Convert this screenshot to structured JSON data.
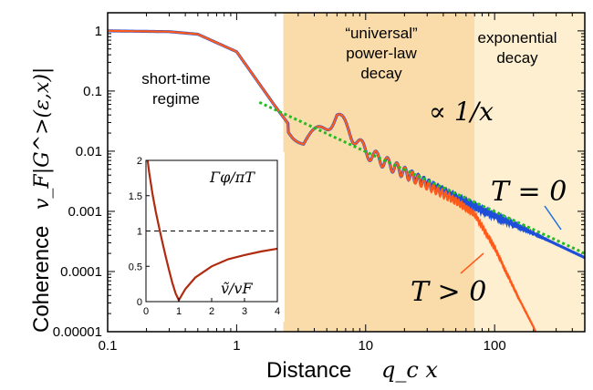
{
  "chart_data": {
    "type": "line",
    "xlabel": "Distance",
    "xlabel_math": "q_c x",
    "ylabel": "Coherence",
    "ylabel_math": "v_F|G^>(ε,x)|",
    "xscale": "log",
    "yscale": "log",
    "xlim": [
      0.1,
      500
    ],
    "ylim": [
      1e-05,
      2
    ],
    "x_ticks": [
      "0.1",
      "1",
      "10",
      "100"
    ],
    "y_ticks": [
      "1",
      "0.1",
      "0.01",
      "0.001",
      "0.0001",
      "0.00001"
    ],
    "regions": [
      {
        "lines": [
          "short-time",
          "regime"
        ],
        "x_range": [
          0.1,
          2.3
        ],
        "color": "#ffffff"
      },
      {
        "lines": [
          "“universal”",
          "power-law",
          "decay"
        ],
        "x_range": [
          2.3,
          70
        ],
        "color": "#f9dcaa"
      },
      {
        "lines": [
          "exponential",
          "decay"
        ],
        "x_range": [
          70,
          500
        ],
        "color": "#fdefd0"
      }
    ],
    "series": [
      {
        "name": "T = 0",
        "color": "#1f4fd8",
        "x": [
          0.1,
          0.3,
          0.5,
          1,
          2,
          3.3,
          6,
          10,
          20,
          50,
          100,
          200,
          500
        ],
        "y": [
          1,
          0.97,
          0.88,
          0.45,
          0.055,
          0.013,
          0.04,
          0.01,
          0.0045,
          0.0017,
          0.00085,
          0.00043,
          0.00017
        ]
      },
      {
        "name": "T > 0",
        "color": "#ff5a1a",
        "x": [
          0.1,
          0.3,
          0.5,
          1,
          2,
          3.3,
          6,
          10,
          20,
          50,
          70,
          100,
          150,
          200,
          250
        ],
        "y": [
          1,
          0.97,
          0.88,
          0.45,
          0.055,
          0.013,
          0.04,
          0.01,
          0.0045,
          0.0015,
          0.0009,
          0.00025,
          4e-05,
          1.2e-05,
          4e-06
        ]
      }
    ],
    "fit_line": {
      "label": "∝ 1/x",
      "color": "#22bb22",
      "x": [
        1.5,
        500
      ],
      "y": [
        0.065,
        0.0002
      ]
    },
    "annotations": [
      {
        "text": "T = 0"
      },
      {
        "text": "T > 0"
      }
    ],
    "inset": {
      "type": "line",
      "xlim": [
        0,
        4
      ],
      "ylim": [
        0,
        2
      ],
      "x_ticks": [
        "0",
        "1",
        "2",
        "3",
        "4"
      ],
      "y_ticks": [
        "0",
        "0.5",
        "1",
        "1.5",
        "2"
      ],
      "label_top": "Γφ/πT",
      "label_bottom": "ṽ/vF",
      "reference_line": {
        "y": 1,
        "style": "dashed"
      },
      "series": [
        {
          "color": "#b02a10",
          "x": [
            0.05,
            0.1,
            0.2,
            0.3,
            0.4,
            0.5,
            0.6,
            0.7,
            0.8,
            0.9,
            1.0,
            1.2,
            1.5,
            2.0,
            2.5,
            3.0,
            3.5,
            4.0
          ],
          "y": [
            2.0,
            1.82,
            1.52,
            1.27,
            1.05,
            0.84,
            0.64,
            0.45,
            0.27,
            0.12,
            0.02,
            0.18,
            0.34,
            0.5,
            0.6,
            0.66,
            0.71,
            0.75
          ]
        }
      ]
    }
  }
}
